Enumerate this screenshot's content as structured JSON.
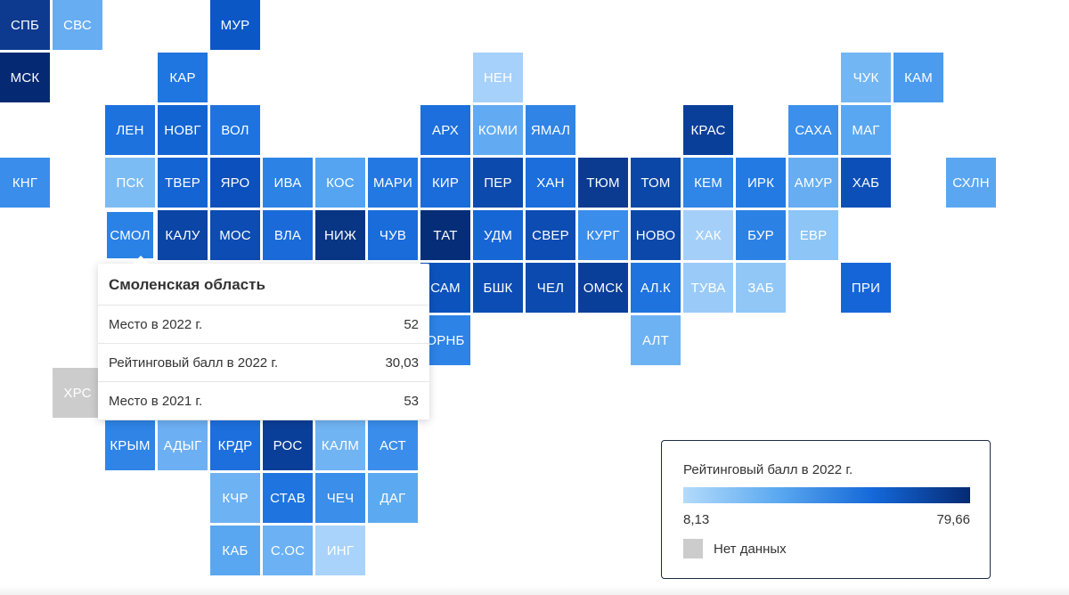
{
  "colors": {
    "no_data": "#cccccc",
    "scale_min": "#b3dbfb",
    "scale_max": "#052a73"
  },
  "tiles": [
    {
      "label": "СПБ",
      "col": 0,
      "row": 0,
      "color": "#0d3a8f"
    },
    {
      "label": "СВС",
      "col": 1,
      "row": 0,
      "color": "#66adf2"
    },
    {
      "label": "МУР",
      "col": 4,
      "row": 0,
      "color": "#0c57c6"
    },
    {
      "label": "МСК",
      "col": 0,
      "row": 1,
      "color": "#052a73"
    },
    {
      "label": "КАР",
      "col": 3,
      "row": 1,
      "color": "#1f76e0"
    },
    {
      "label": "НЕН",
      "col": 9,
      "row": 1,
      "color": "#a6d1fa"
    },
    {
      "label": "ЧУК",
      "col": 16,
      "row": 1,
      "color": "#73b6f4"
    },
    {
      "label": "КАМ",
      "col": 17,
      "row": 1,
      "color": "#4b9bef"
    },
    {
      "label": "ЛЕН",
      "col": 2,
      "row": 2,
      "color": "#1d72de"
    },
    {
      "label": "НОВГ",
      "col": 3,
      "row": 2,
      "color": "#1364d3"
    },
    {
      "label": "ВОЛ",
      "col": 4,
      "row": 2,
      "color": "#1e73de"
    },
    {
      "label": "АРХ",
      "col": 8,
      "row": 2,
      "color": "#1c6fdc"
    },
    {
      "label": "КОМИ",
      "col": 9,
      "row": 2,
      "color": "#62abf2"
    },
    {
      "label": "ЯМАЛ",
      "col": 10,
      "row": 2,
      "color": "#2f84e6"
    },
    {
      "label": "КРАС",
      "col": 13,
      "row": 2,
      "color": "#0a3f99"
    },
    {
      "label": "САХА",
      "col": 15,
      "row": 2,
      "color": "#3c8fea"
    },
    {
      "label": "МАГ",
      "col": 16,
      "row": 2,
      "color": "#5aa7f1"
    },
    {
      "label": "КНГ",
      "col": 0,
      "row": 3,
      "color": "#3a8deb"
    },
    {
      "label": "ПСК",
      "col": 2,
      "row": 3,
      "color": "#7cbcf5"
    },
    {
      "label": "ТВЕР",
      "col": 3,
      "row": 3,
      "color": "#1564d4"
    },
    {
      "label": "ЯРО",
      "col": 4,
      "row": 3,
      "color": "#0c50bd"
    },
    {
      "label": "ИВА",
      "col": 5,
      "row": 3,
      "color": "#2c82e5"
    },
    {
      "label": "КОС",
      "col": 6,
      "row": 3,
      "color": "#55a4f1"
    },
    {
      "label": "МАРИ",
      "col": 7,
      "row": 3,
      "color": "#2478e2"
    },
    {
      "label": "КИР",
      "col": 8,
      "row": 3,
      "color": "#1b6cdb"
    },
    {
      "label": "ПЕР",
      "col": 9,
      "row": 3,
      "color": "#0c4aad"
    },
    {
      "label": "ХАН",
      "col": 10,
      "row": 3,
      "color": "#1b6edb"
    },
    {
      "label": "ТЮМ",
      "col": 11,
      "row": 3,
      "color": "#0a3b90"
    },
    {
      "label": "ТОМ",
      "col": 12,
      "row": 3,
      "color": "#0b47a6"
    },
    {
      "label": "КЕМ",
      "col": 13,
      "row": 3,
      "color": "#2f86e7"
    },
    {
      "label": "ИРК",
      "col": 14,
      "row": 3,
      "color": "#247ae3"
    },
    {
      "label": "АМУР",
      "col": 15,
      "row": 3,
      "color": "#66adf2"
    },
    {
      "label": "ХАБ",
      "col": 16,
      "row": 3,
      "color": "#0c4fb8"
    },
    {
      "label": "СХЛН",
      "col": 18,
      "row": 3,
      "color": "#5aa6f1"
    },
    {
      "label": "СМОЛ",
      "col": 2,
      "row": 4,
      "color": "#2b82e6"
    },
    {
      "label": "КАЛУ",
      "col": 3,
      "row": 4,
      "color": "#0b45a6"
    },
    {
      "label": "МОС",
      "col": 4,
      "row": 4,
      "color": "#0c4cb3"
    },
    {
      "label": "ВЛА",
      "col": 5,
      "row": 4,
      "color": "#1a6bd9"
    },
    {
      "label": "НИЖ",
      "col": 6,
      "row": 4,
      "color": "#083685"
    },
    {
      "label": "ЧУВ",
      "col": 7,
      "row": 4,
      "color": "#1a6cda"
    },
    {
      "label": "ТАТ",
      "col": 8,
      "row": 4,
      "color": "#062e78"
    },
    {
      "label": "УДМ",
      "col": 9,
      "row": 4,
      "color": "#1766d6"
    },
    {
      "label": "СВЕР",
      "col": 10,
      "row": 4,
      "color": "#0c4cb3"
    },
    {
      "label": "КУРГ",
      "col": 11,
      "row": 4,
      "color": "#3a8deb"
    },
    {
      "label": "НОВО",
      "col": 12,
      "row": 4,
      "color": "#0c48aa"
    },
    {
      "label": "ХАК",
      "col": 13,
      "row": 4,
      "color": "#a4cff9"
    },
    {
      "label": "БУР",
      "col": 14,
      "row": 4,
      "color": "#2c81e5"
    },
    {
      "label": "ЕВР",
      "col": 15,
      "row": 4,
      "color": "#8cc5f6"
    },
    {
      "label": "САМ",
      "col": 8,
      "row": 5,
      "color": "#0d53bd"
    },
    {
      "label": "БШК",
      "col": 9,
      "row": 5,
      "color": "#0c4db5"
    },
    {
      "label": "ЧЕЛ",
      "col": 10,
      "row": 5,
      "color": "#0c4ab0"
    },
    {
      "label": "ОМСК",
      "col": 11,
      "row": 5,
      "color": "#0a3f99"
    },
    {
      "label": "АЛ.К",
      "col": 12,
      "row": 5,
      "color": "#1f73de"
    },
    {
      "label": "ТУВА",
      "col": 13,
      "row": 5,
      "color": "#9acbf8"
    },
    {
      "label": "ЗАБ",
      "col": 14,
      "row": 5,
      "color": "#91c7f7"
    },
    {
      "label": "ПРИ",
      "col": 16,
      "row": 5,
      "color": "#1565d8"
    },
    {
      "label": "ОРНБ",
      "col": 8,
      "row": 6,
      "color": "#2d83e6"
    },
    {
      "label": "АЛТ",
      "col": 12,
      "row": 6,
      "color": "#6db2f3"
    },
    {
      "label": "ХРС",
      "col": 1,
      "row": 7,
      "color": "#cccccc"
    },
    {
      "label": "",
      "col": 4,
      "row": 7,
      "color": "#4e9fee"
    },
    {
      "label": "",
      "col": 5,
      "row": 7,
      "color": "#2c82e5"
    },
    {
      "label": "",
      "col": 6,
      "row": 7,
      "color": "#5aa7f1"
    },
    {
      "label": "КРЫМ",
      "col": 2,
      "row": 8,
      "color": "#2f84e6"
    },
    {
      "label": "АДЫГ",
      "col": 3,
      "row": 8,
      "color": "#6caff2"
    },
    {
      "label": "КРДР",
      "col": 4,
      "row": 8,
      "color": "#1c6fdc"
    },
    {
      "label": "РОС",
      "col": 5,
      "row": 8,
      "color": "#0a3f99"
    },
    {
      "label": "КАЛМ",
      "col": 6,
      "row": 8,
      "color": "#70b4f3"
    },
    {
      "label": "АСТ",
      "col": 7,
      "row": 8,
      "color": "#3a8deb"
    },
    {
      "label": "КЧР",
      "col": 4,
      "row": 9,
      "color": "#6db2f3"
    },
    {
      "label": "СТАВ",
      "col": 5,
      "row": 9,
      "color": "#1f74e0"
    },
    {
      "label": "ЧЕЧ",
      "col": 6,
      "row": 9,
      "color": "#3b8ee9"
    },
    {
      "label": "ДАГ",
      "col": 7,
      "row": 9,
      "color": "#5ba9f1"
    },
    {
      "label": "КАБ",
      "col": 4,
      "row": 10,
      "color": "#5aa7f1"
    },
    {
      "label": "С.ОС",
      "col": 5,
      "row": 10,
      "color": "#6bb1f3"
    },
    {
      "label": "ИНГ",
      "col": 6,
      "row": 10,
      "color": "#a9d3fa"
    }
  ],
  "active_tile": "СМОЛ",
  "tooltip": {
    "title": "Смоленская область",
    "rows": [
      {
        "label": "Место в 2022 г.",
        "value": "52"
      },
      {
        "label": "Рейтинговый балл в 2022 г.",
        "value": "30,03"
      },
      {
        "label": "Место в 2021 г.",
        "value": "53"
      }
    ]
  },
  "legend": {
    "title": "Рейтинговый балл в 2022 г.",
    "min": "8,13",
    "max": "79,66",
    "no_data_label": "Нет данных"
  }
}
